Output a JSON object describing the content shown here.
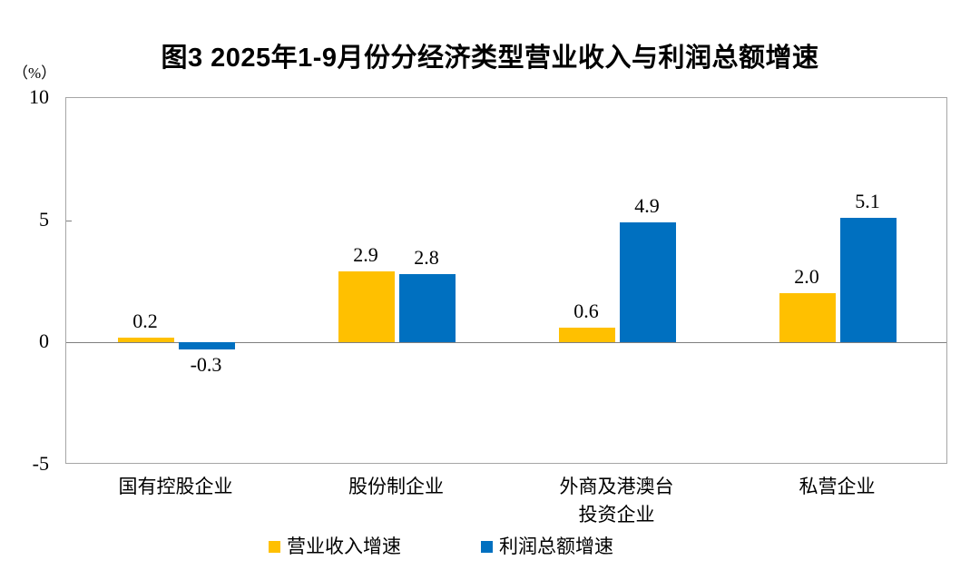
{
  "figure": {
    "title": "图3 2025年1-9月份分经济类型营业收入与利润总额增速",
    "unit_label": "（%）"
  },
  "legend": {
    "items": [
      {
        "label": "营业收入增速",
        "color": "#FFC000"
      },
      {
        "label": "利润总额增速",
        "color": "#0070C0"
      }
    ]
  },
  "chart_data": {
    "type": "bar",
    "title": "图3 2025年1-9月份分经济类型营业收入与利润总额增速",
    "ylabel": "（%）",
    "categories": [
      "国有控股企业",
      "股份制企业",
      "外商及港澳台\n投资企业",
      "私营企业"
    ],
    "series": [
      {
        "name": "营业收入增速",
        "color": "#FFC000",
        "values": [
          0.2,
          2.9,
          0.6,
          2.0
        ]
      },
      {
        "name": "利润总额增速",
        "color": "#0070C0",
        "values": [
          -0.3,
          2.8,
          4.9,
          5.1
        ]
      }
    ],
    "ylim": [
      -5,
      10
    ],
    "yticks": [
      10,
      5,
      0,
      -5
    ],
    "grid": false,
    "value_labels": true,
    "legend_position": "bottom",
    "colors": {
      "zero_line": "#7f7f7f",
      "plot_border": "#a6a6a6",
      "text": "#000000"
    }
  }
}
